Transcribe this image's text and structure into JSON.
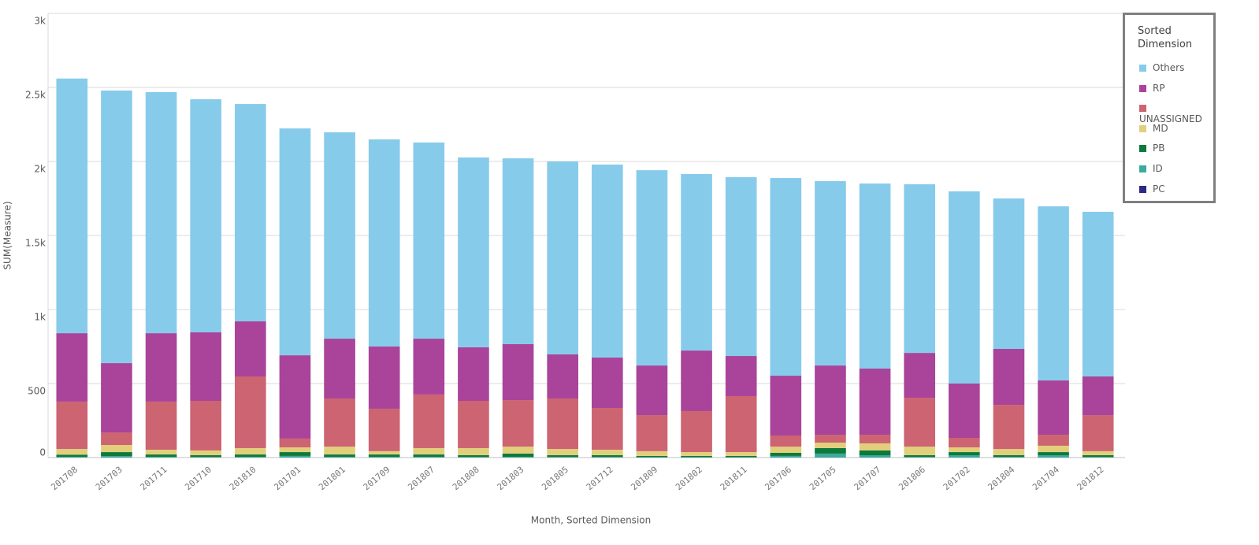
{
  "chart_data": {
    "type": "stacked-bar",
    "y_label": "SUM(Measure)",
    "x_label": "Month, Sorted Dimension",
    "legend_title": "Sorted Dimension",
    "categories": [
      "201708",
      "201703",
      "201711",
      "201710",
      "201810",
      "201701",
      "201801",
      "201709",
      "201807",
      "201808",
      "201803",
      "201805",
      "201712",
      "201809",
      "201802",
      "201811",
      "201706",
      "201705",
      "201707",
      "201806",
      "201702",
      "201804",
      "201704",
      "201812"
    ],
    "series": [
      {
        "name": "Others",
        "color": "#87cbeb",
        "values": [
          1720,
          1841,
          1628,
          1574,
          1468,
          1532,
          1394,
          1399,
          1325,
          1282,
          1255,
          1303,
          1303,
          1319,
          1192,
          1208,
          1335,
          1245,
          1250,
          1139,
          1298,
          1016,
          1176,
          1112
        ]
      },
      {
        "name": "RP",
        "color": "#a9449a",
        "values": [
          462,
          468,
          462,
          463,
          372,
          563,
          404,
          420,
          377,
          362,
          378,
          298,
          341,
          335,
          409,
          271,
          404,
          468,
          447,
          303,
          367,
          378,
          367,
          261
        ]
      },
      {
        "name": "UNASSIGNED",
        "color": "#cc6472",
        "values": [
          320,
          85,
          325,
          335,
          484,
          59,
          325,
          287,
          362,
          319,
          314,
          341,
          282,
          244,
          277,
          378,
          75,
          53,
          58,
          330,
          64,
          298,
          74,
          244
        ]
      },
      {
        "name": "MD",
        "color": "#e2cf7c",
        "values": [
          38,
          48,
          32,
          32,
          43,
          32,
          53,
          22,
          43,
          48,
          47,
          42,
          37,
          32,
          26,
          26,
          42,
          37,
          48,
          58,
          32,
          42,
          43,
          27
        ]
      },
      {
        "name": "PB",
        "color": "#0d7a3c",
        "values": [
          15,
          27,
          16,
          12,
          16,
          26,
          16,
          16,
          16,
          12,
          22,
          12,
          12,
          8,
          8,
          8,
          21,
          37,
          32,
          12,
          21,
          12,
          21,
          12
        ]
      },
      {
        "name": "ID",
        "color": "#3aab9c",
        "values": [
          4,
          9,
          4,
          3,
          4,
          10,
          4,
          4,
          4,
          3,
          4,
          3,
          3,
          2,
          2,
          2,
          10,
          26,
          15,
          3,
          15,
          3,
          15,
          3
        ]
      },
      {
        "name": "PC",
        "color": "#2c2a85",
        "values": [
          1,
          1,
          1,
          1,
          1,
          1,
          1,
          1,
          1,
          1,
          1,
          1,
          1,
          1,
          1,
          1,
          1,
          1,
          1,
          1,
          1,
          1,
          1,
          1
        ]
      }
    ],
    "ylim": [
      0,
      3000
    ],
    "yticks": [
      0,
      500,
      {
        "value": 1000,
        "label": "1k"
      },
      {
        "value": 1500,
        "label": "1.5k"
      },
      {
        "value": 2000,
        "label": "2k"
      },
      {
        "value": 2500,
        "label": "2.5k"
      },
      {
        "value": 3000,
        "label": "3k"
      }
    ],
    "grid": true,
    "legend": "right"
  }
}
